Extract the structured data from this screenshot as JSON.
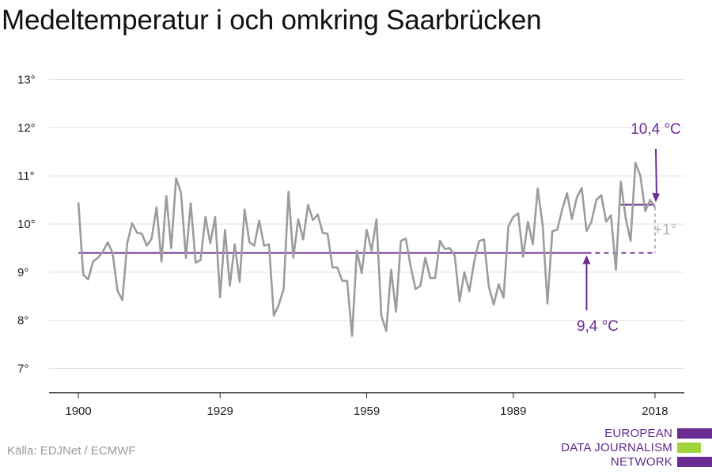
{
  "title": "Medeltemperatur i och omkring Saarbrücken",
  "source": "Källa: EDJNet / ECMWF",
  "logo": {
    "lines": [
      "EUROPEAN",
      "DATA JOURNALISM",
      "NETWORK"
    ],
    "colors": [
      "#6a2c91",
      "#9ed53c",
      "#6a2c91"
    ]
  },
  "colors": {
    "series": "#9c9c9c",
    "accent": "#6a2c91",
    "diff": "#b4b4b4",
    "grid": "#e0e0e0",
    "axis": "#222222"
  },
  "chart_data": {
    "type": "line",
    "x": [
      1900,
      1901,
      1902,
      1903,
      1904,
      1905,
      1906,
      1907,
      1908,
      1909,
      1910,
      1911,
      1912,
      1913,
      1914,
      1915,
      1916,
      1917,
      1918,
      1919,
      1920,
      1921,
      1922,
      1923,
      1924,
      1925,
      1926,
      1927,
      1928,
      1929,
      1930,
      1931,
      1932,
      1933,
      1934,
      1935,
      1936,
      1937,
      1938,
      1939,
      1940,
      1941,
      1942,
      1943,
      1944,
      1945,
      1946,
      1947,
      1948,
      1949,
      1950,
      1951,
      1952,
      1953,
      1954,
      1955,
      1956,
      1957,
      1958,
      1959,
      1960,
      1961,
      1962,
      1963,
      1964,
      1965,
      1966,
      1967,
      1968,
      1969,
      1970,
      1971,
      1972,
      1973,
      1974,
      1975,
      1976,
      1977,
      1978,
      1979,
      1980,
      1981,
      1982,
      1983,
      1984,
      1985,
      1986,
      1987,
      1988,
      1989,
      1990,
      1991,
      1992,
      1993,
      1994,
      1995,
      1996,
      1997,
      1998,
      1999,
      2000,
      2001,
      2002,
      2003,
      2004,
      2005,
      2006,
      2007,
      2008,
      2009,
      2010,
      2011,
      2012,
      2013,
      2014,
      2015,
      2016,
      2017,
      2018
    ],
    "y": [
      10.45,
      8.95,
      8.85,
      9.22,
      9.3,
      9.42,
      9.62,
      9.4,
      8.62,
      8.42,
      9.6,
      10.02,
      9.82,
      9.8,
      9.55,
      9.7,
      10.35,
      9.22,
      10.58,
      9.5,
      10.95,
      10.65,
      9.3,
      10.43,
      9.2,
      9.25,
      10.15,
      9.6,
      10.15,
      8.48,
      9.88,
      8.72,
      9.58,
      8.8,
      10.3,
      9.62,
      9.55,
      10.07,
      9.55,
      9.58,
      8.1,
      8.32,
      8.65,
      10.67,
      9.3,
      10.1,
      9.68,
      10.4,
      10.08,
      10.2,
      9.82,
      9.8,
      9.1,
      9.1,
      8.82,
      8.82,
      7.68,
      9.45,
      8.98,
      9.88,
      9.45,
      10.1,
      8.1,
      7.78,
      9.05,
      8.18,
      9.65,
      9.7,
      9.12,
      8.65,
      8.72,
      9.3,
      8.88,
      8.88,
      9.65,
      9.48,
      9.5,
      9.35,
      8.4,
      9.0,
      8.6,
      9.22,
      9.65,
      9.68,
      8.7,
      8.33,
      8.75,
      8.47,
      9.95,
      10.15,
      10.22,
      9.32,
      10.05,
      9.58,
      10.74,
      9.98,
      8.35,
      9.85,
      9.88,
      10.3,
      10.64,
      10.1,
      10.55,
      10.75,
      9.85,
      10.05,
      10.5,
      10.6,
      10.05,
      10.18,
      9.05,
      10.88,
      10.12,
      9.65,
      11.27,
      11.0,
      10.27,
      10.5,
      10.35
    ],
    "ylim": [
      6.5,
      13.5
    ],
    "yticks": [
      7,
      8,
      9,
      10,
      11,
      12,
      13
    ],
    "ytick_labels": [
      "7°",
      "8°",
      "9°",
      "10°",
      "11°",
      "12°",
      "13°"
    ],
    "xticks": [
      1900,
      1929,
      1959,
      1989,
      2018
    ],
    "xtick_labels": [
      "1900",
      "1929",
      "1959",
      "1989",
      "2018"
    ],
    "xlim": [
      1894,
      2024
    ],
    "grid": true,
    "reference_lines": [
      {
        "value": 9.4,
        "from": 1900,
        "to": 2004,
        "dashed_to": 2018,
        "label": "9,4 °C"
      },
      {
        "value": 10.4,
        "from": 2011,
        "to": 2018,
        "label": "10,4 °C"
      }
    ],
    "difference_label": "+1°"
  }
}
